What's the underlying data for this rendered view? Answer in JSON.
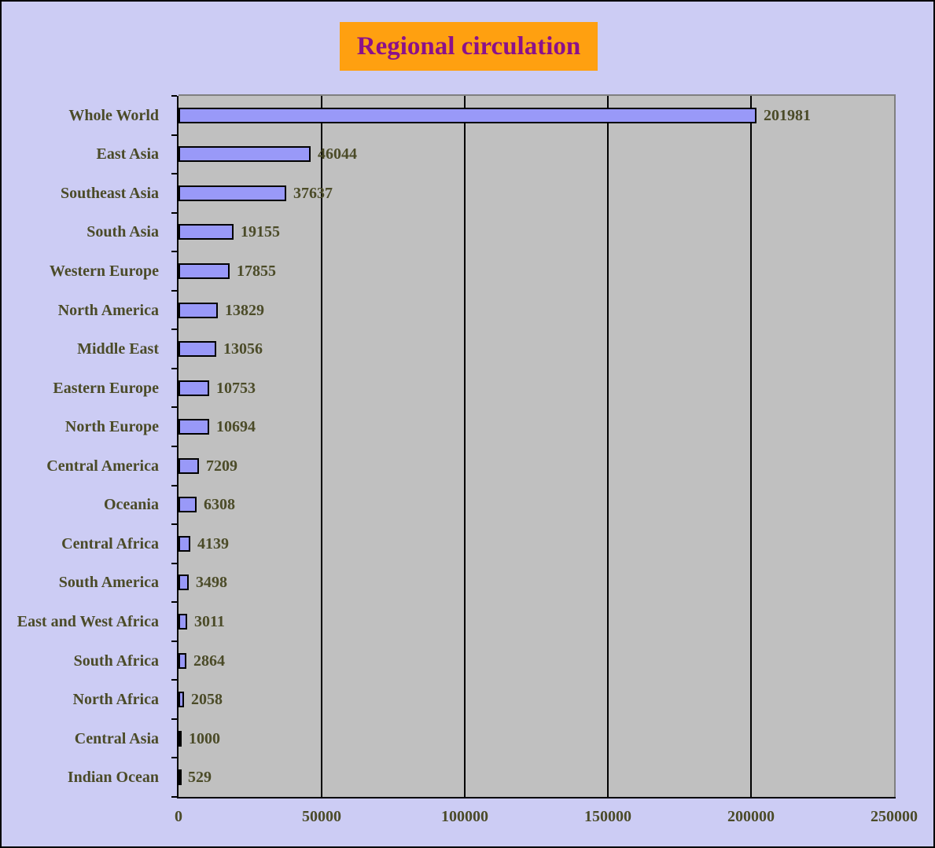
{
  "title": {
    "text": "Regional circulation"
  },
  "colors": {
    "background": "#CCCCF4",
    "plot_background": "#C0C0C0",
    "plot_border": "#808080",
    "bar_fill": "#9999F8",
    "bar_border": "#000000",
    "gridline": "#000000",
    "title_background": "#FFA010",
    "title_text": "#8B118B",
    "label_text": "#4B4B28"
  },
  "chart_data": {
    "type": "bar",
    "orientation": "horizontal",
    "title": "Regional circulation",
    "xlabel": "",
    "ylabel": "",
    "xlim": [
      0,
      250000
    ],
    "x_ticks": [
      0,
      50000,
      100000,
      150000,
      200000,
      250000
    ],
    "grid": "vertical gridlines at x ticks, plot area shaded gray",
    "legend": "none",
    "value_labels_shown": true,
    "categories": [
      "Whole World",
      "East Asia",
      "Southeast Asia",
      "South Asia",
      "Western Europe",
      "North America",
      "Middle East",
      "Eastern Europe",
      "North Europe",
      "Central America",
      "Oceania",
      "Central Africa",
      "South America",
      "East and West Africa",
      "South Africa",
      "North Africa",
      "Central Asia",
      "Indian Ocean"
    ],
    "values": [
      201981,
      46044,
      37637,
      19155,
      17855,
      13829,
      13056,
      10753,
      10694,
      7209,
      6308,
      4139,
      3498,
      3011,
      2864,
      2058,
      1000,
      529
    ]
  }
}
